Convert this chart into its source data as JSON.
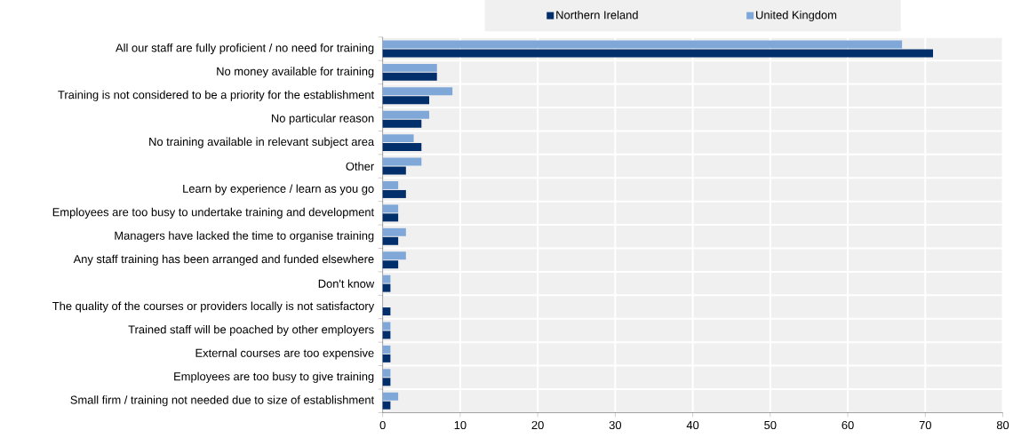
{
  "chart_data": {
    "type": "bar",
    "orientation": "horizontal",
    "categories": [
      "All our staff are fully proficient / no need for training",
      "No money available for training",
      "Training is not considered to be a priority for the establishment",
      "No particular reason",
      "No training available in relevant subject area",
      "Other",
      "Learn by experience / learn as you go",
      "Employees are too busy to undertake training and development",
      "Managers have lacked the time to organise training",
      "Any staff training has been arranged and funded elsewhere",
      "Don't know",
      "The quality of the courses or providers locally is not satisfactory",
      "Trained staff will be poached by other employers",
      "External courses are too expensive",
      "Employees are too busy to give training",
      "Small firm / training not needed due to size of establishment"
    ],
    "series": [
      {
        "name": "Northern Ireland",
        "color": "#002f6c",
        "values": [
          71,
          7,
          6,
          5,
          5,
          3,
          3,
          2,
          2,
          2,
          1,
          1,
          1,
          1,
          1,
          1
        ]
      },
      {
        "name": "United Kingdom",
        "color": "#7fa8d9",
        "values": [
          67,
          7,
          9,
          6,
          4,
          5,
          2,
          2,
          3,
          3,
          1,
          0,
          1,
          1,
          1,
          2
        ]
      }
    ],
    "xlim": [
      0,
      80
    ],
    "xticks": [
      0,
      10,
      20,
      30,
      40,
      50,
      60,
      70,
      80
    ],
    "grid": true,
    "legend": "top"
  }
}
